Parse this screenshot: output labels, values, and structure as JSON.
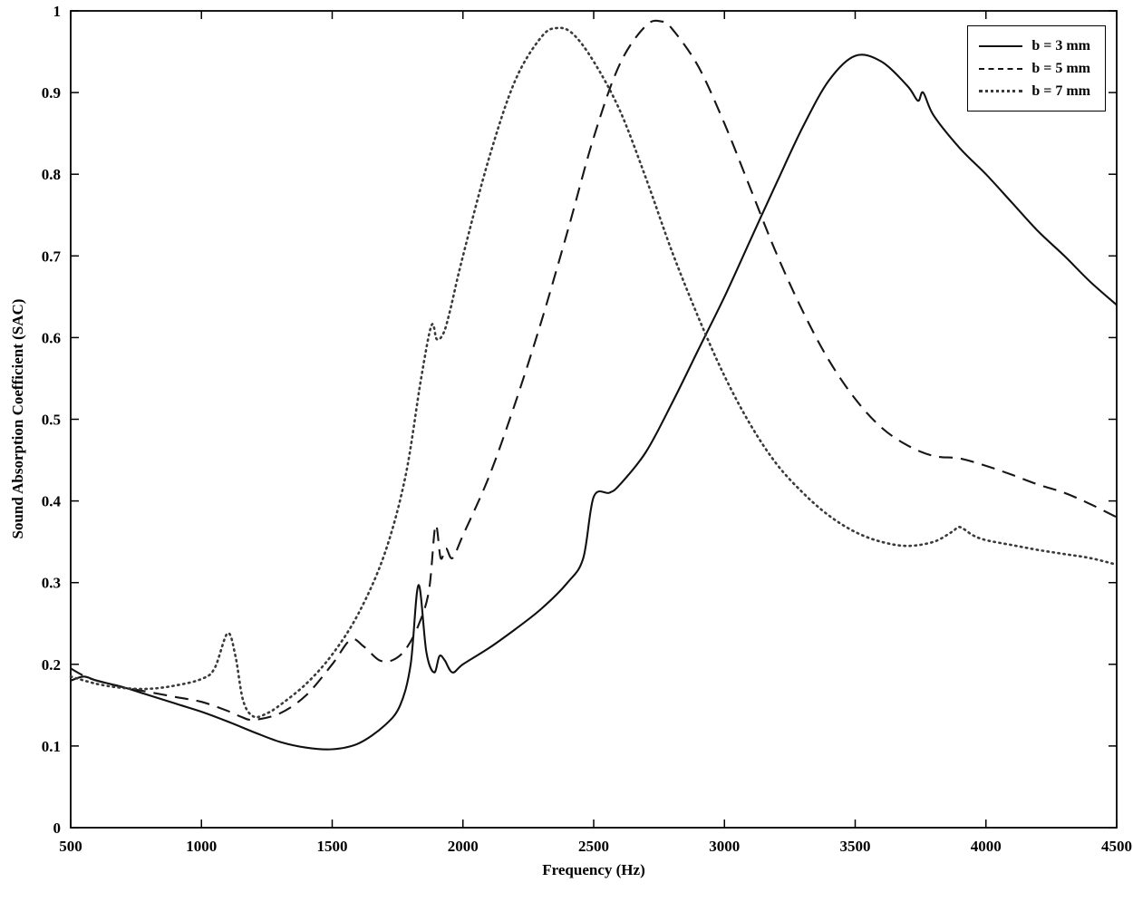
{
  "figure": {
    "background": "#ffffff",
    "axis_color": "#000000"
  },
  "chart_data": {
    "type": "line",
    "title": "",
    "xlabel": "Frequency (Hz)",
    "ylabel": "Sound Absorption Coefficient (SAC)",
    "xlim": [
      500,
      4500
    ],
    "ylim": [
      0,
      1
    ],
    "xticks": [
      500,
      1000,
      1500,
      2000,
      2500,
      3000,
      3500,
      4000,
      4500
    ],
    "yticks": [
      0,
      0.1,
      0.2,
      0.3,
      0.4,
      0.5,
      0.6,
      0.7,
      0.8,
      0.9,
      1
    ],
    "grid": false,
    "legend_position": "top-right",
    "series": [
      {
        "name": "b = 3 mm",
        "style": "solid",
        "color": "#101010",
        "x": [
          500,
          550,
          600,
          700,
          800,
          900,
          1000,
          1100,
          1200,
          1300,
          1400,
          1500,
          1600,
          1700,
          1760,
          1800,
          1830,
          1860,
          1890,
          1910,
          1930,
          1960,
          2000,
          2100,
          2200,
          2300,
          2400,
          2460,
          2500,
          2560,
          2600,
          2700,
          2800,
          2900,
          3000,
          3100,
          3200,
          3300,
          3400,
          3500,
          3600,
          3700,
          3740,
          3760,
          3800,
          3900,
          4000,
          4100,
          4200,
          4300,
          4400,
          4500
        ],
        "y": [
          0.18,
          0.185,
          0.18,
          0.172,
          0.162,
          0.152,
          0.142,
          0.13,
          0.117,
          0.105,
          0.098,
          0.096,
          0.103,
          0.125,
          0.15,
          0.2,
          0.297,
          0.215,
          0.19,
          0.21,
          0.205,
          0.19,
          0.2,
          0.22,
          0.243,
          0.268,
          0.3,
          0.33,
          0.405,
          0.41,
          0.42,
          0.46,
          0.52,
          0.585,
          0.65,
          0.72,
          0.79,
          0.858,
          0.915,
          0.945,
          0.938,
          0.908,
          0.89,
          0.9,
          0.872,
          0.832,
          0.8,
          0.765,
          0.73,
          0.7,
          0.668,
          0.64
        ]
      },
      {
        "name": "b = 5 mm",
        "style": "dashed",
        "color": "#161616",
        "x": [
          500,
          550,
          600,
          700,
          800,
          900,
          1000,
          1100,
          1150,
          1200,
          1300,
          1400,
          1500,
          1570,
          1620,
          1680,
          1730,
          1780,
          1830,
          1870,
          1895,
          1915,
          1935,
          1960,
          2000,
          2100,
          2200,
          2300,
          2400,
          2500,
          2600,
          2700,
          2760,
          2800,
          2900,
          3000,
          3100,
          3200,
          3300,
          3400,
          3500,
          3600,
          3700,
          3800,
          3900,
          4000,
          4100,
          4200,
          4300,
          4400,
          4500
        ],
        "y": [
          0.195,
          0.186,
          0.18,
          0.172,
          0.166,
          0.16,
          0.154,
          0.143,
          0.136,
          0.132,
          0.14,
          0.162,
          0.2,
          0.23,
          0.222,
          0.205,
          0.205,
          0.218,
          0.248,
          0.29,
          0.37,
          0.33,
          0.342,
          0.33,
          0.358,
          0.43,
          0.52,
          0.62,
          0.73,
          0.845,
          0.935,
          0.982,
          0.987,
          0.978,
          0.932,
          0.862,
          0.782,
          0.702,
          0.632,
          0.572,
          0.525,
          0.49,
          0.468,
          0.455,
          0.452,
          0.443,
          0.432,
          0.42,
          0.41,
          0.396,
          0.38
        ]
      },
      {
        "name": "b = 7 mm",
        "style": "dotted",
        "color": "#3a3a3a",
        "x": [
          500,
          600,
          700,
          800,
          900,
          1000,
          1050,
          1100,
          1130,
          1160,
          1200,
          1250,
          1300,
          1400,
          1500,
          1600,
          1700,
          1780,
          1840,
          1880,
          1900,
          1925,
          1950,
          2000,
          2100,
          2200,
          2300,
          2360,
          2420,
          2500,
          2600,
          2700,
          2800,
          2900,
          3000,
          3100,
          3200,
          3300,
          3400,
          3500,
          3600,
          3700,
          3800,
          3870,
          3900,
          3950,
          4000,
          4100,
          4200,
          4300,
          4400,
          4500
        ],
        "y": [
          0.185,
          0.176,
          0.171,
          0.17,
          0.174,
          0.182,
          0.195,
          0.238,
          0.21,
          0.155,
          0.136,
          0.14,
          0.15,
          0.176,
          0.212,
          0.262,
          0.335,
          0.43,
          0.55,
          0.615,
          0.598,
          0.605,
          0.632,
          0.7,
          0.82,
          0.915,
          0.968,
          0.979,
          0.972,
          0.938,
          0.878,
          0.795,
          0.705,
          0.625,
          0.553,
          0.493,
          0.445,
          0.41,
          0.382,
          0.362,
          0.35,
          0.345,
          0.35,
          0.362,
          0.368,
          0.358,
          0.352,
          0.346,
          0.34,
          0.335,
          0.33,
          0.322
        ]
      }
    ]
  }
}
